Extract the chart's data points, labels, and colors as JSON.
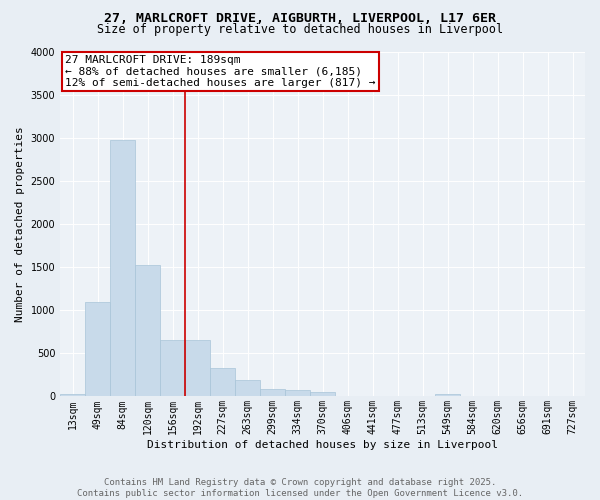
{
  "title_line1": "27, MARLCROFT DRIVE, AIGBURTH, LIVERPOOL, L17 6ER",
  "title_line2": "Size of property relative to detached houses in Liverpool",
  "xlabel": "Distribution of detached houses by size in Liverpool",
  "ylabel": "Number of detached properties",
  "bar_labels": [
    "13sqm",
    "49sqm",
    "84sqm",
    "120sqm",
    "156sqm",
    "192sqm",
    "227sqm",
    "263sqm",
    "299sqm",
    "334sqm",
    "370sqm",
    "406sqm",
    "441sqm",
    "477sqm",
    "513sqm",
    "549sqm",
    "584sqm",
    "620sqm",
    "656sqm",
    "691sqm",
    "727sqm"
  ],
  "bar_values": [
    25,
    1100,
    2970,
    1520,
    650,
    650,
    335,
    190,
    85,
    80,
    50,
    0,
    0,
    0,
    0,
    25,
    0,
    0,
    0,
    0,
    0
  ],
  "bar_color": "#c8daea",
  "bar_edgecolor": "#a8c4d8",
  "vline_color": "#cc0000",
  "vline_index": 5,
  "annotation_text": "27 MARLCROFT DRIVE: 189sqm\n← 88% of detached houses are smaller (6,185)\n12% of semi-detached houses are larger (817) →",
  "annotation_box_facecolor": "#ffffff",
  "annotation_box_edgecolor": "#cc0000",
  "ylim": [
    0,
    4000
  ],
  "yticks": [
    0,
    500,
    1000,
    1500,
    2000,
    2500,
    3000,
    3500,
    4000
  ],
  "bg_color": "#e8eef4",
  "plot_bg_color": "#edf2f7",
  "footer_text": "Contains HM Land Registry data © Crown copyright and database right 2025.\nContains public sector information licensed under the Open Government Licence v3.0.",
  "title_fontsize": 9.5,
  "subtitle_fontsize": 8.5,
  "axis_label_fontsize": 8,
  "tick_fontsize": 7,
  "annotation_fontsize": 8,
  "footer_fontsize": 6.5,
  "ylabel_fontsize": 8
}
